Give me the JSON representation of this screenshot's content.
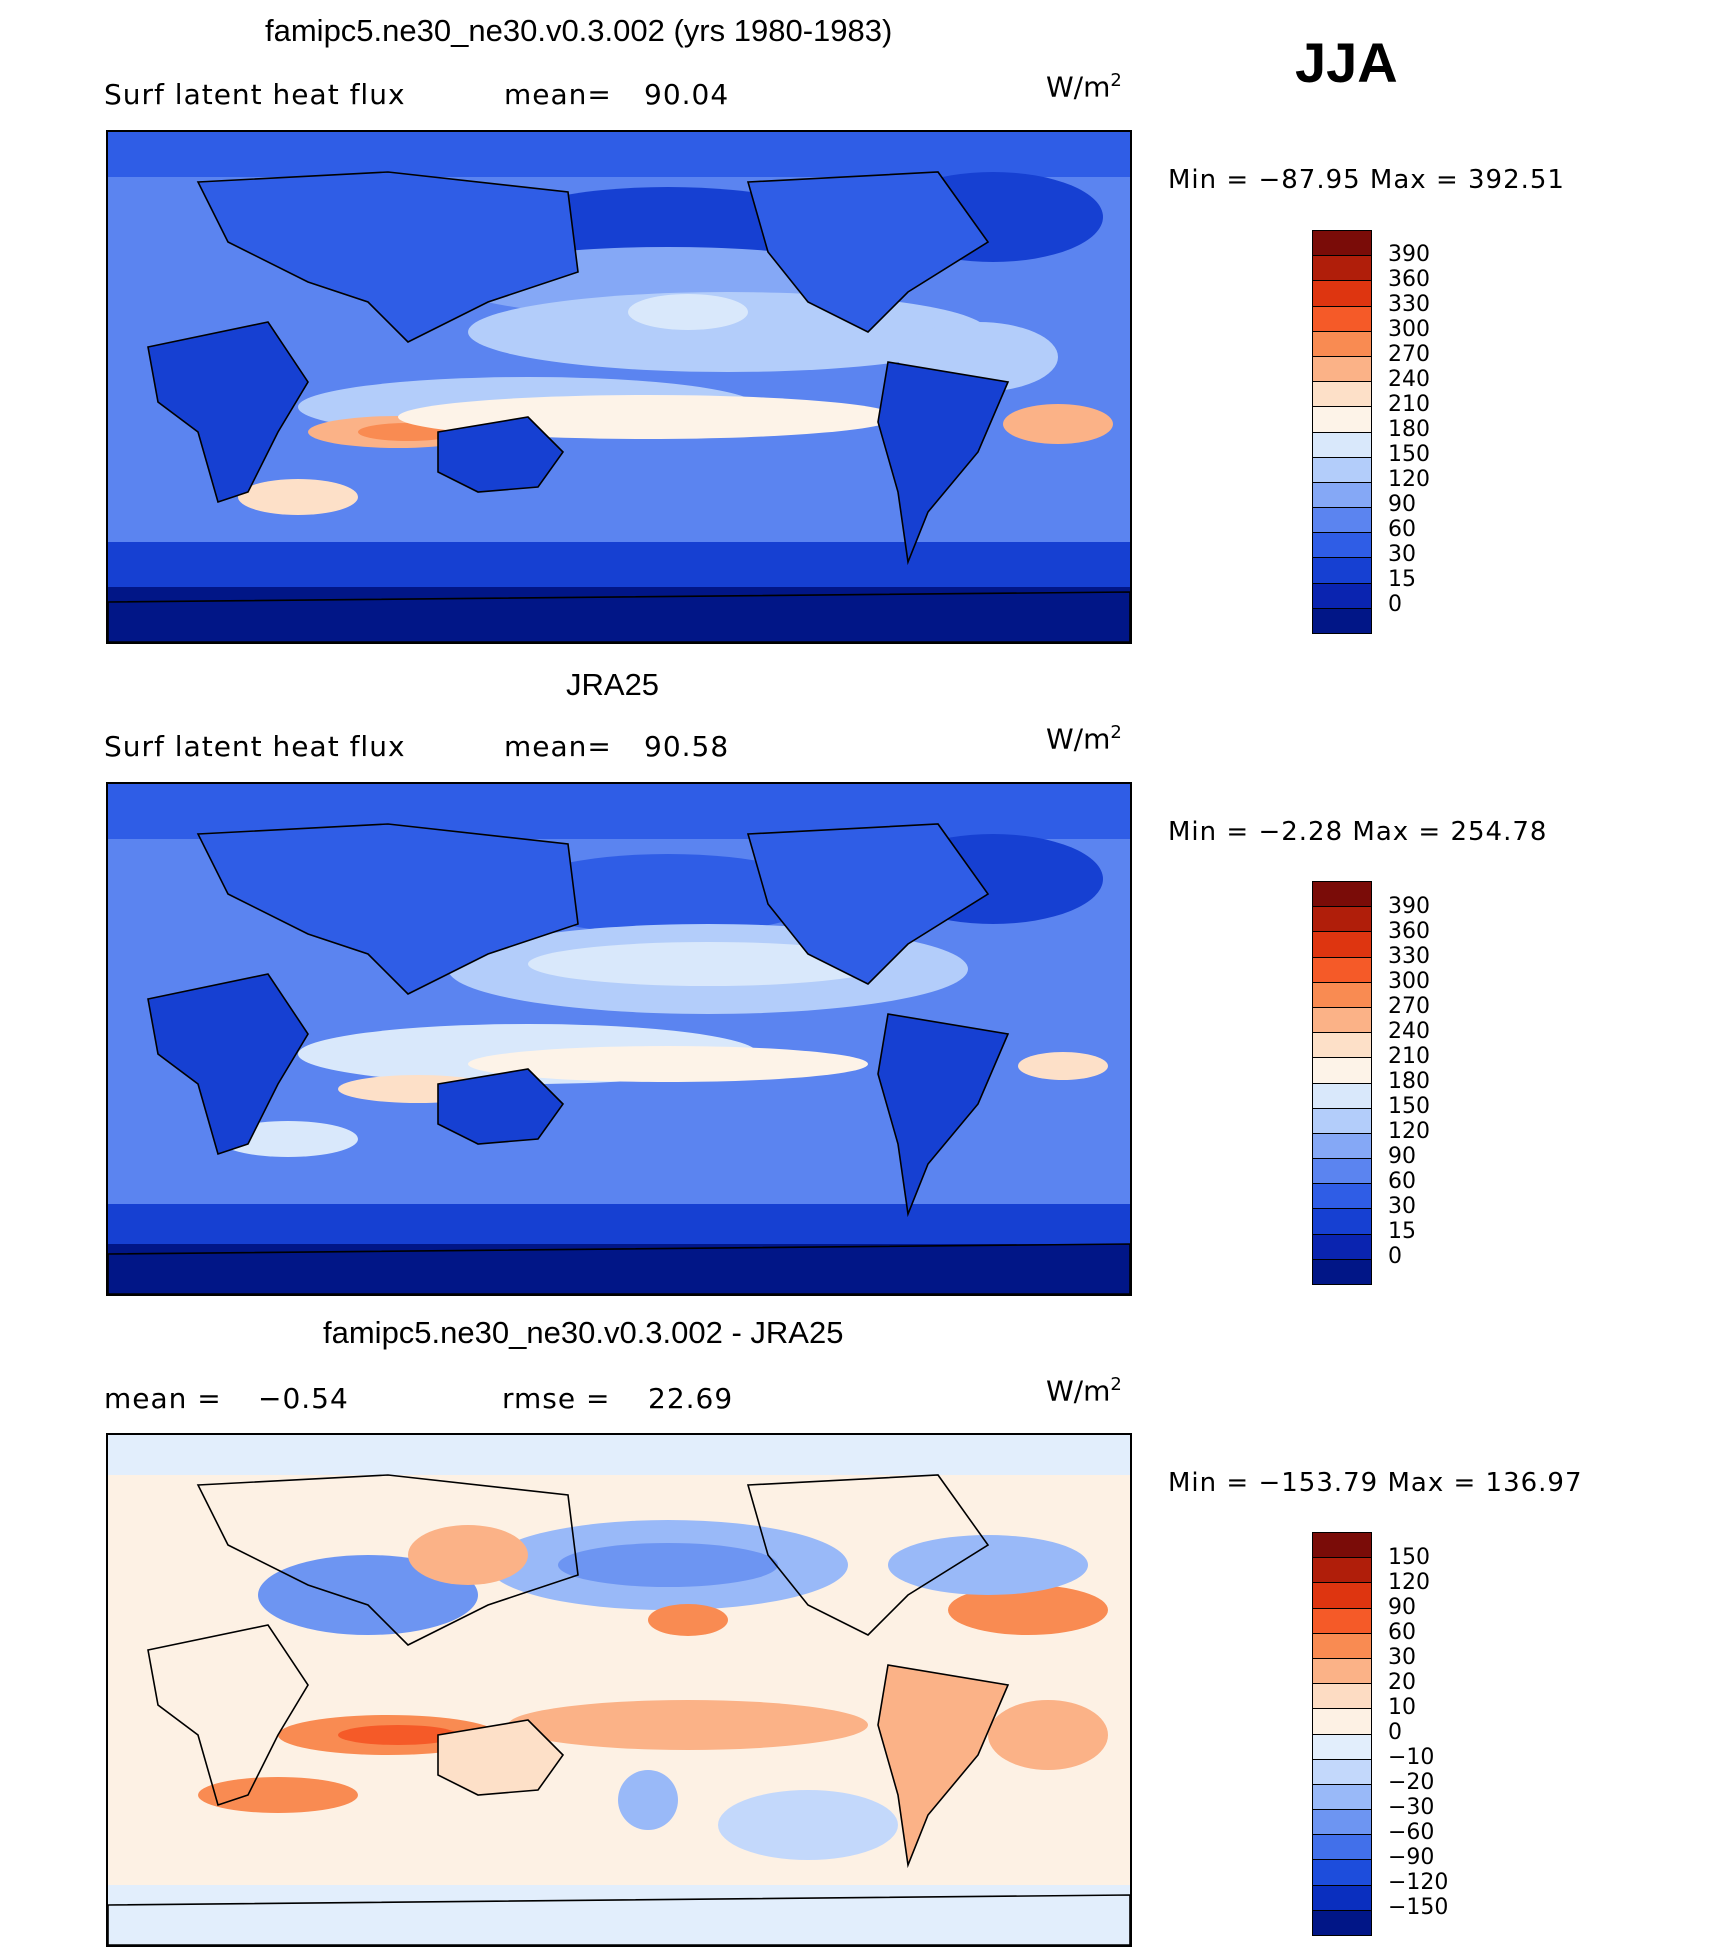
{
  "season": "JJA",
  "panels": [
    {
      "title": "famipc5.ne30_ne30.v0.3.002 (yrs 1980-1983)",
      "variable": "Surf latent heat flux",
      "stat_label": "mean=",
      "stat_value": "90.04",
      "units": "W/m",
      "units_exp": "2",
      "minmax": "Min  =  −87.95  Max  =  392.51",
      "colorbar_labels": [
        "390",
        "360",
        "330",
        "300",
        "270",
        "240",
        "210",
        "180",
        "150",
        "120",
        "90",
        "60",
        "30",
        "15",
        "0"
      ]
    },
    {
      "title": "JRA25",
      "variable": "Surf latent heat flux",
      "stat_label": "mean=",
      "stat_value": "90.58",
      "units": "W/m",
      "units_exp": "2",
      "minmax": "Min  =    −2.28  Max  =  254.78",
      "colorbar_labels": [
        "390",
        "360",
        "330",
        "300",
        "270",
        "240",
        "210",
        "180",
        "150",
        "120",
        "90",
        "60",
        "30",
        "15",
        "0"
      ]
    },
    {
      "title": "famipc5.ne30_ne30.v0.3.002 - JRA25",
      "mean_label": "mean  =",
      "mean_value": "−0.54",
      "rmse_label": "rmse  =",
      "rmse_value": "22.69",
      "units": "W/m",
      "units_exp": "2",
      "minmax": "Min  =  −153.79  Max  =  136.97",
      "colorbar_labels": [
        "150",
        "120",
        "90",
        "60",
        "30",
        "20",
        "10",
        "0",
        "−10",
        "−20",
        "−30",
        "−60",
        "−90",
        "−120",
        "−150"
      ]
    }
  ],
  "colors": {
    "flux_scale": [
      "#7a0c08",
      "#b01e0a",
      "#de3510",
      "#f55a28",
      "#f98b52",
      "#fbb287",
      "#fde0c8",
      "#fdf3e8",
      "#d9e8fb",
      "#b3cdfa",
      "#85a8f6",
      "#5b84f0",
      "#2f5de6",
      "#1640d2",
      "#0a24b0",
      "#011687"
    ],
    "diff_scale": [
      "#7a0c08",
      "#b01e0a",
      "#de3510",
      "#f55a28",
      "#f98b52",
      "#fbb287",
      "#fddcc3",
      "#fdf1e4",
      "#e2eefc",
      "#c3d8fb",
      "#99b9f8",
      "#6d95f2",
      "#4270ea",
      "#1d4ddc",
      "#0a2fbf",
      "#011687"
    ]
  }
}
